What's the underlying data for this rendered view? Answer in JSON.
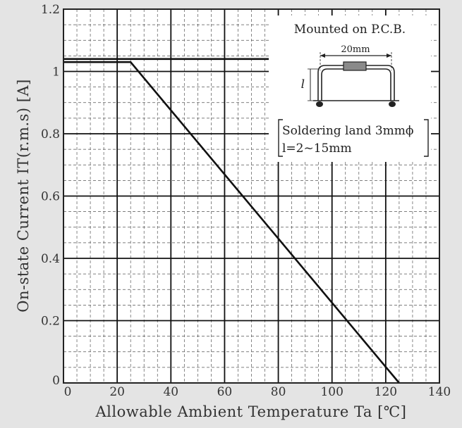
{
  "chart_data": {
    "type": "line",
    "title": "",
    "xlabel": "Allowable Ambient Temperature  Ta [℃]",
    "ylabel": "On-state Current  IT(r.m.s) [A]",
    "xlim": [
      0,
      140
    ],
    "ylim": [
      0,
      1.2
    ],
    "x_ticks": [
      "0",
      "20",
      "40",
      "60",
      "80",
      "100",
      "120",
      "140"
    ],
    "y_ticks": [
      "0",
      "0.2",
      "0.4",
      "0.6",
      "0.8",
      "1",
      "1.2"
    ],
    "grid": true,
    "series": [
      {
        "x": [
          0,
          25,
          125
        ],
        "y": [
          1.03,
          1.03,
          0
        ]
      },
      {
        "x": [
          0,
          80
        ],
        "y": [
          1.04,
          1.04
        ]
      }
    ],
    "annotations": {
      "mounted": "Mounted on P.C.B.",
      "dimension": "20mm",
      "length_symbol": "l",
      "soldering_line1": "Soldering land 3mmϕ",
      "soldering_line2": "l=2~15mm"
    }
  }
}
